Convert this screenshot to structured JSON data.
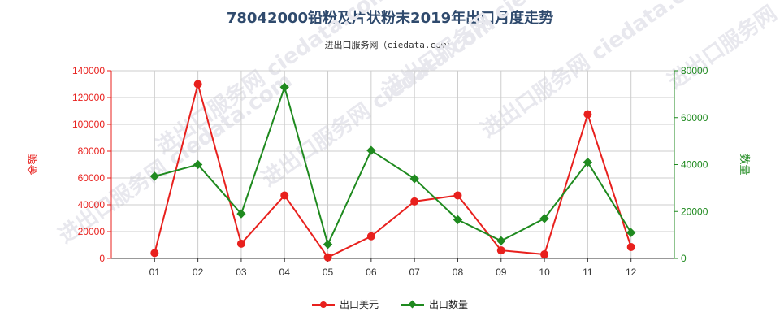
{
  "title": "78042000铅粉及片状粉末2019年出口月度走势",
  "subtitle": "进出口服务网（ciedata.com）",
  "watermark": "进出口服务网 ciedata.com",
  "colors": {
    "usd": "#e8201d",
    "qty": "#1f8a1f",
    "grid": "#cccccc",
    "axis": "#333333"
  },
  "chart_data": {
    "type": "line",
    "categories": [
      "01",
      "02",
      "03",
      "04",
      "05",
      "06",
      "07",
      "08",
      "09",
      "10",
      "11",
      "12"
    ],
    "ylabel_left": "金额",
    "ylabel_right": "数量",
    "ylim_left": [
      0,
      140000
    ],
    "ylim_right": [
      0,
      80000
    ],
    "yticks_left": [
      0,
      20000,
      40000,
      60000,
      80000,
      100000,
      120000,
      140000
    ],
    "yticks_right": [
      0,
      20000,
      40000,
      60000,
      80000
    ],
    "series": [
      {
        "name": "出口美元",
        "axis": "left",
        "marker": "circle",
        "values": [
          4000,
          130000,
          11000,
          47000,
          800,
          16500,
          42500,
          47000,
          6000,
          3000,
          107500,
          8500
        ]
      },
      {
        "name": "出口数量",
        "axis": "right",
        "marker": "diamond",
        "values": [
          35000,
          40000,
          19000,
          73000,
          6000,
          46000,
          34000,
          16500,
          7500,
          17000,
          41000,
          11000
        ]
      }
    ],
    "grid": true,
    "legend_position": "bottom-center"
  }
}
